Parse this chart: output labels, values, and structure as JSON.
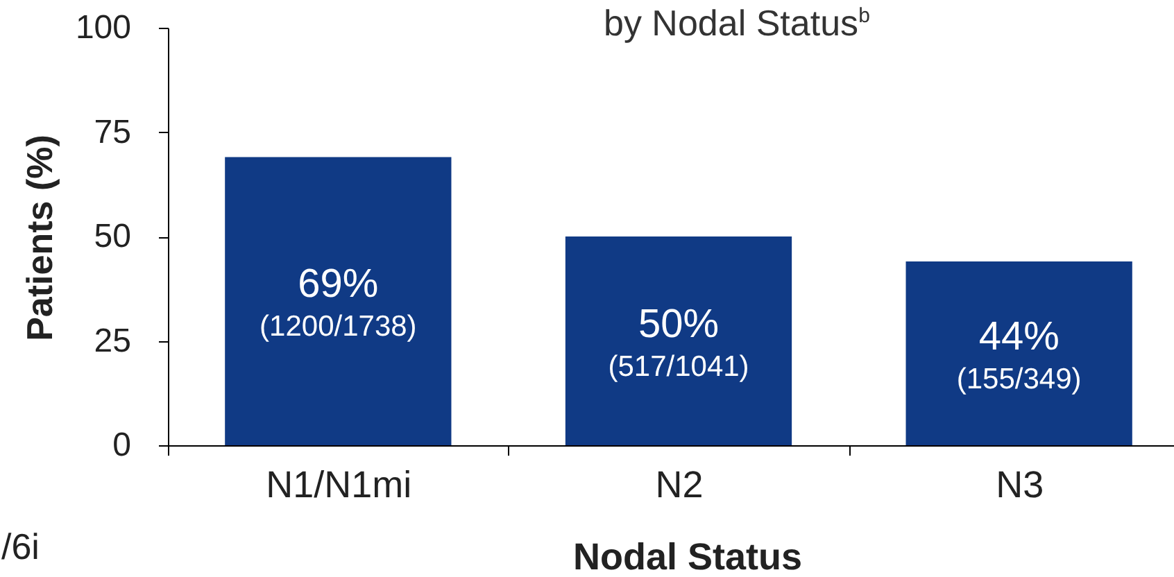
{
  "chart_data": {
    "type": "bar",
    "title": "by Nodal Status$^{b}$",
    "xlabel": "Nodal Status",
    "ylabel": "Patients (%)",
    "categories": [
      "N1/N1mi",
      "N2",
      "N3"
    ],
    "values": [
      69,
      50,
      44
    ],
    "color": "#103a85",
    "value_labels": [
      "69%\n(1200/1738)",
      "50%\n(517/1041)",
      "44%\n(155/349)"
    ],
    "ylim": [
      0,
      100
    ],
    "yticks": [
      0,
      25,
      50,
      75,
      100
    ],
    "annotations": [
      "/6i"
    ]
  }
}
